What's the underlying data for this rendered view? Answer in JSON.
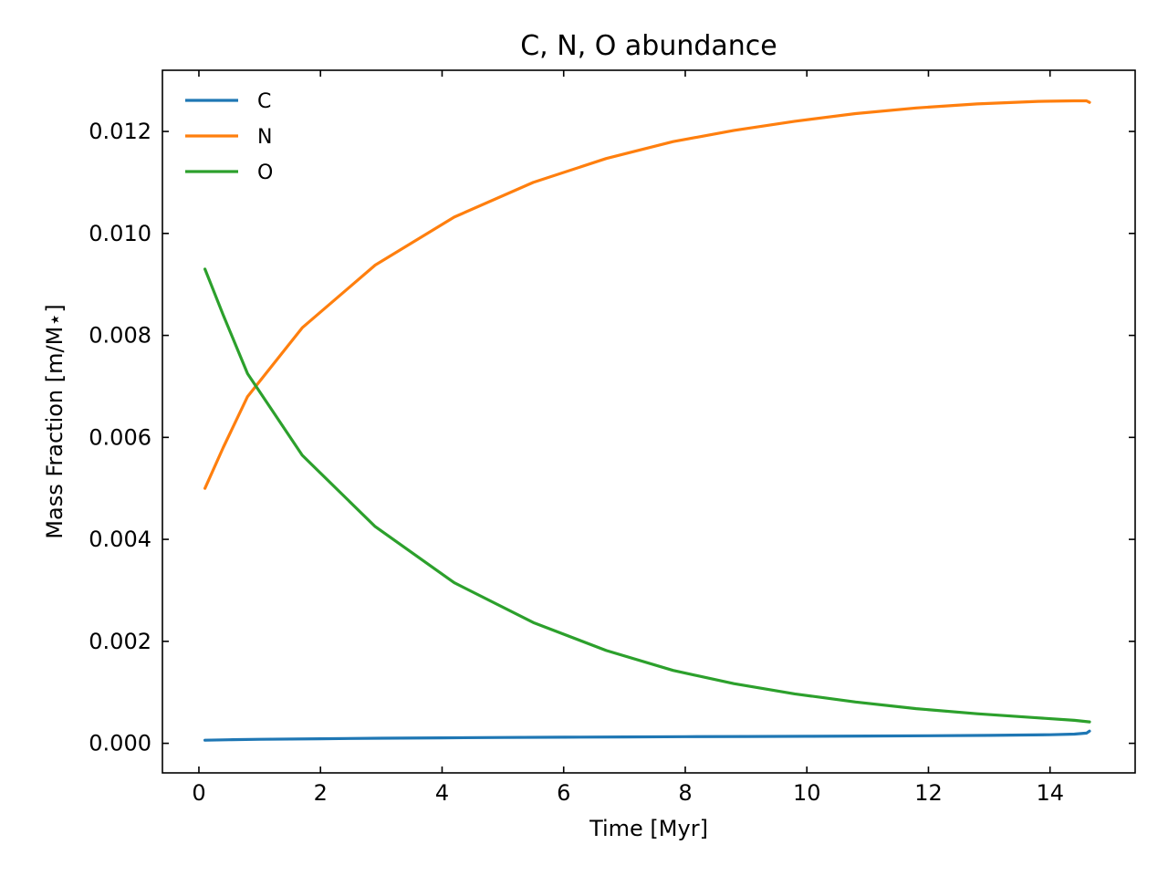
{
  "chart_data": {
    "type": "line",
    "title": "C, N, O abundance",
    "xlabel": "Time [Myr]",
    "ylabel": "Mass Fraction [m/M⋆]",
    "xlim": [
      -0.6,
      15.4
    ],
    "ylim": [
      -0.00058,
      0.0132
    ],
    "xticks": [
      0,
      2,
      4,
      6,
      8,
      10,
      12,
      14
    ],
    "xtick_labels": [
      "0",
      "2",
      "4",
      "6",
      "8",
      "10",
      "12",
      "14"
    ],
    "yticks": [
      0.0,
      0.002,
      0.004,
      0.006,
      0.008,
      0.01,
      0.012
    ],
    "ytick_labels": [
      "0.000",
      "0.002",
      "0.004",
      "0.006",
      "0.008",
      "0.010",
      "0.012"
    ],
    "grid": false,
    "legend_position": "top-left",
    "series": [
      {
        "name": "C",
        "color": "#1f77b4",
        "x": [
          0.1,
          0.5,
          1,
          2,
          3,
          4,
          5,
          6,
          7,
          8,
          9,
          10,
          11,
          12,
          13,
          14,
          14.4,
          14.6,
          14.65
        ],
        "y": [
          6e-05,
          7e-05,
          7.8e-05,
          9e-05,
          0.0001,
          0.000108,
          0.000114,
          0.00012,
          0.000125,
          0.00013,
          0.000134,
          0.000138,
          0.000143,
          0.000148,
          0.000155,
          0.000168,
          0.00018,
          0.0002,
          0.00024
        ]
      },
      {
        "name": "N",
        "color": "#ff7f0e",
        "x": [
          0.1,
          0.4,
          0.8,
          1.7,
          2.9,
          4.2,
          5.5,
          6.7,
          7.8,
          8.8,
          9.8,
          10.8,
          11.8,
          12.8,
          13.8,
          14.4,
          14.6,
          14.65
        ],
        "y": [
          0.005,
          0.0058,
          0.0068,
          0.00815,
          0.00938,
          0.01032,
          0.011,
          0.01147,
          0.0118,
          0.01202,
          0.0122,
          0.01235,
          0.01246,
          0.01254,
          0.01259,
          0.0126,
          0.0126,
          0.01257
        ]
      },
      {
        "name": "O",
        "color": "#2ca02c",
        "x": [
          0.1,
          0.2,
          0.4,
          0.8,
          1.7,
          2.9,
          4.2,
          5.5,
          6.7,
          7.8,
          8.8,
          9.8,
          10.8,
          11.8,
          12.8,
          13.8,
          14.4,
          14.65
        ],
        "y": [
          0.0093,
          0.009,
          0.0084,
          0.00725,
          0.00565,
          0.00425,
          0.00315,
          0.00237,
          0.00182,
          0.00143,
          0.00117,
          0.00097,
          0.00081,
          0.00068,
          0.00058,
          0.0005,
          0.00045,
          0.00042
        ]
      }
    ]
  }
}
